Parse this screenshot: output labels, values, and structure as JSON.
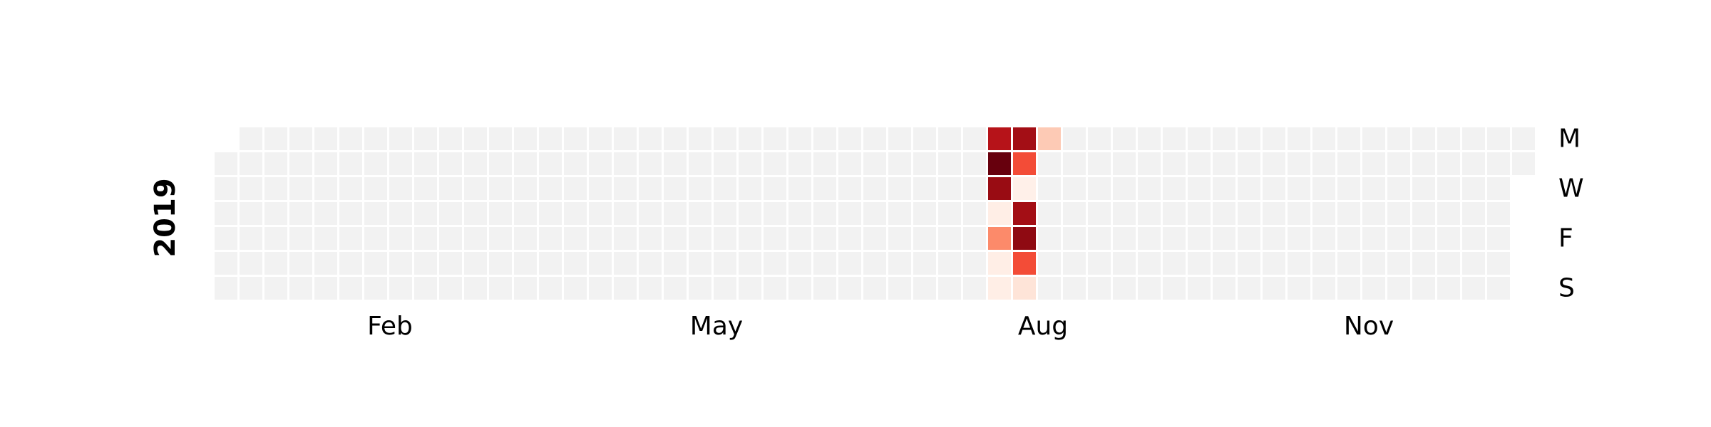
{
  "chart_data": {
    "type": "heatmap",
    "title": "",
    "year": "2019",
    "colormap": "Reds",
    "empty_color": "#f2f2f2",
    "x_tick_labels": [
      "Feb",
      "May",
      "Aug",
      "Nov"
    ],
    "y_tick_labels": [
      "M",
      "W",
      "F",
      "S"
    ],
    "start_date": "2019-01-01",
    "end_date": "2019-12-31",
    "value_range": [
      0,
      1
    ],
    "values": [
      {
        "date": "2019-08-05",
        "value": 0.82
      },
      {
        "date": "2019-08-06",
        "value": 1.0
      },
      {
        "date": "2019-08-07",
        "value": 0.9
      },
      {
        "date": "2019-08-08",
        "value": 0.04
      },
      {
        "date": "2019-08-09",
        "value": 0.4
      },
      {
        "date": "2019-08-10",
        "value": 0.04
      },
      {
        "date": "2019-08-11",
        "value": 0.04
      },
      {
        "date": "2019-08-12",
        "value": 0.88
      },
      {
        "date": "2019-08-13",
        "value": 0.58
      },
      {
        "date": "2019-08-14",
        "value": 0.03
      },
      {
        "date": "2019-08-15",
        "value": 0.88
      },
      {
        "date": "2019-08-16",
        "value": 0.92
      },
      {
        "date": "2019-08-17",
        "value": 0.58
      },
      {
        "date": "2019-08-18",
        "value": 0.1
      },
      {
        "date": "2019-08-19",
        "value": 0.2
      }
    ]
  }
}
